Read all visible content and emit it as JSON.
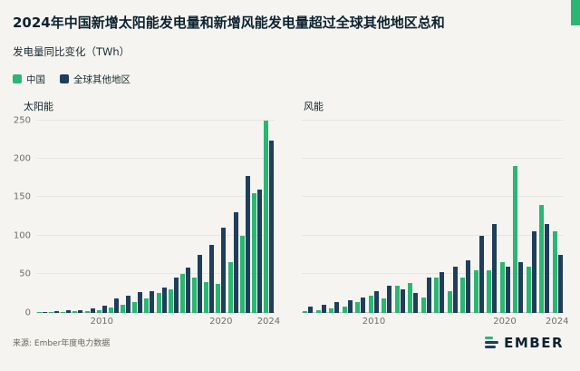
{
  "header": {
    "title": "2024年中国新增太阳能发电量和新增风能发电量超过全球其他地区总和",
    "subtitle": "发电量同比变化（TWh）"
  },
  "colors": {
    "china_green": "#2bb673",
    "world_navy": "#1f3e5c",
    "accent": "#2bb673"
  },
  "legend": [
    {
      "label": "中国",
      "color": "#2bb673"
    },
    {
      "label": "全球其他地区",
      "color": "#1f3e5c"
    }
  ],
  "footer": {
    "source": "来源: Ember年度电力数据",
    "logo": "EMBER"
  },
  "chart_data": [
    {
      "type": "bar",
      "title": "太阳能",
      "ylabel": "发电量同比变化 (TWh)",
      "ylim": [
        0,
        250
      ],
      "y_ticks": [
        0,
        50,
        100,
        150,
        200,
        250
      ],
      "x_ticks": [
        "2010",
        "2020",
        "2024"
      ],
      "grid": true,
      "categories": [
        2005,
        2006,
        2007,
        2008,
        2009,
        2010,
        2011,
        2012,
        2013,
        2014,
        2015,
        2016,
        2017,
        2018,
        2019,
        2020,
        2021,
        2022,
        2023,
        2024
      ],
      "series": [
        {
          "name": "中国",
          "key": "china",
          "color": "#2bb673",
          "values": [
            0.2,
            0.5,
            1,
            1.5,
            2,
            3,
            6,
            10,
            14,
            18,
            25,
            30,
            50,
            45,
            40,
            37,
            65,
            100,
            155,
            250
          ]
        },
        {
          "name": "全球其他地区",
          "key": "rest-of-world",
          "color": "#1f3e5c",
          "values": [
            1,
            2,
            2.5,
            3.5,
            5,
            9,
            18,
            22,
            26,
            28,
            33,
            45,
            58,
            75,
            88,
            110,
            130,
            177,
            160,
            224
          ]
        }
      ]
    },
    {
      "type": "bar",
      "title": "风能",
      "ylabel": "发电量同比变化 (TWh)",
      "ylim": [
        0,
        250
      ],
      "y_ticks": [
        0,
        50,
        100,
        150,
        200,
        250
      ],
      "x_ticks": [
        "2010",
        "2020",
        "2024"
      ],
      "grid": true,
      "categories": [
        2005,
        2006,
        2007,
        2008,
        2009,
        2010,
        2011,
        2012,
        2013,
        2014,
        2015,
        2016,
        2017,
        2018,
        2019,
        2020,
        2021,
        2022,
        2023,
        2024
      ],
      "series": [
        {
          "name": "中国",
          "key": "china",
          "color": "#2bb673",
          "values": [
            2,
            3,
            5,
            8,
            14,
            22,
            18,
            35,
            38,
            20,
            45,
            28,
            45,
            55,
            55,
            65,
            190,
            60,
            140,
            105
          ]
        },
        {
          "name": "全球其他地区",
          "key": "rest-of-world",
          "color": "#1f3e5c",
          "values": [
            8,
            10,
            14,
            16,
            20,
            28,
            35,
            30,
            25,
            45,
            52,
            60,
            68,
            100,
            115,
            60,
            65,
            105,
            115,
            75
          ]
        }
      ]
    }
  ]
}
